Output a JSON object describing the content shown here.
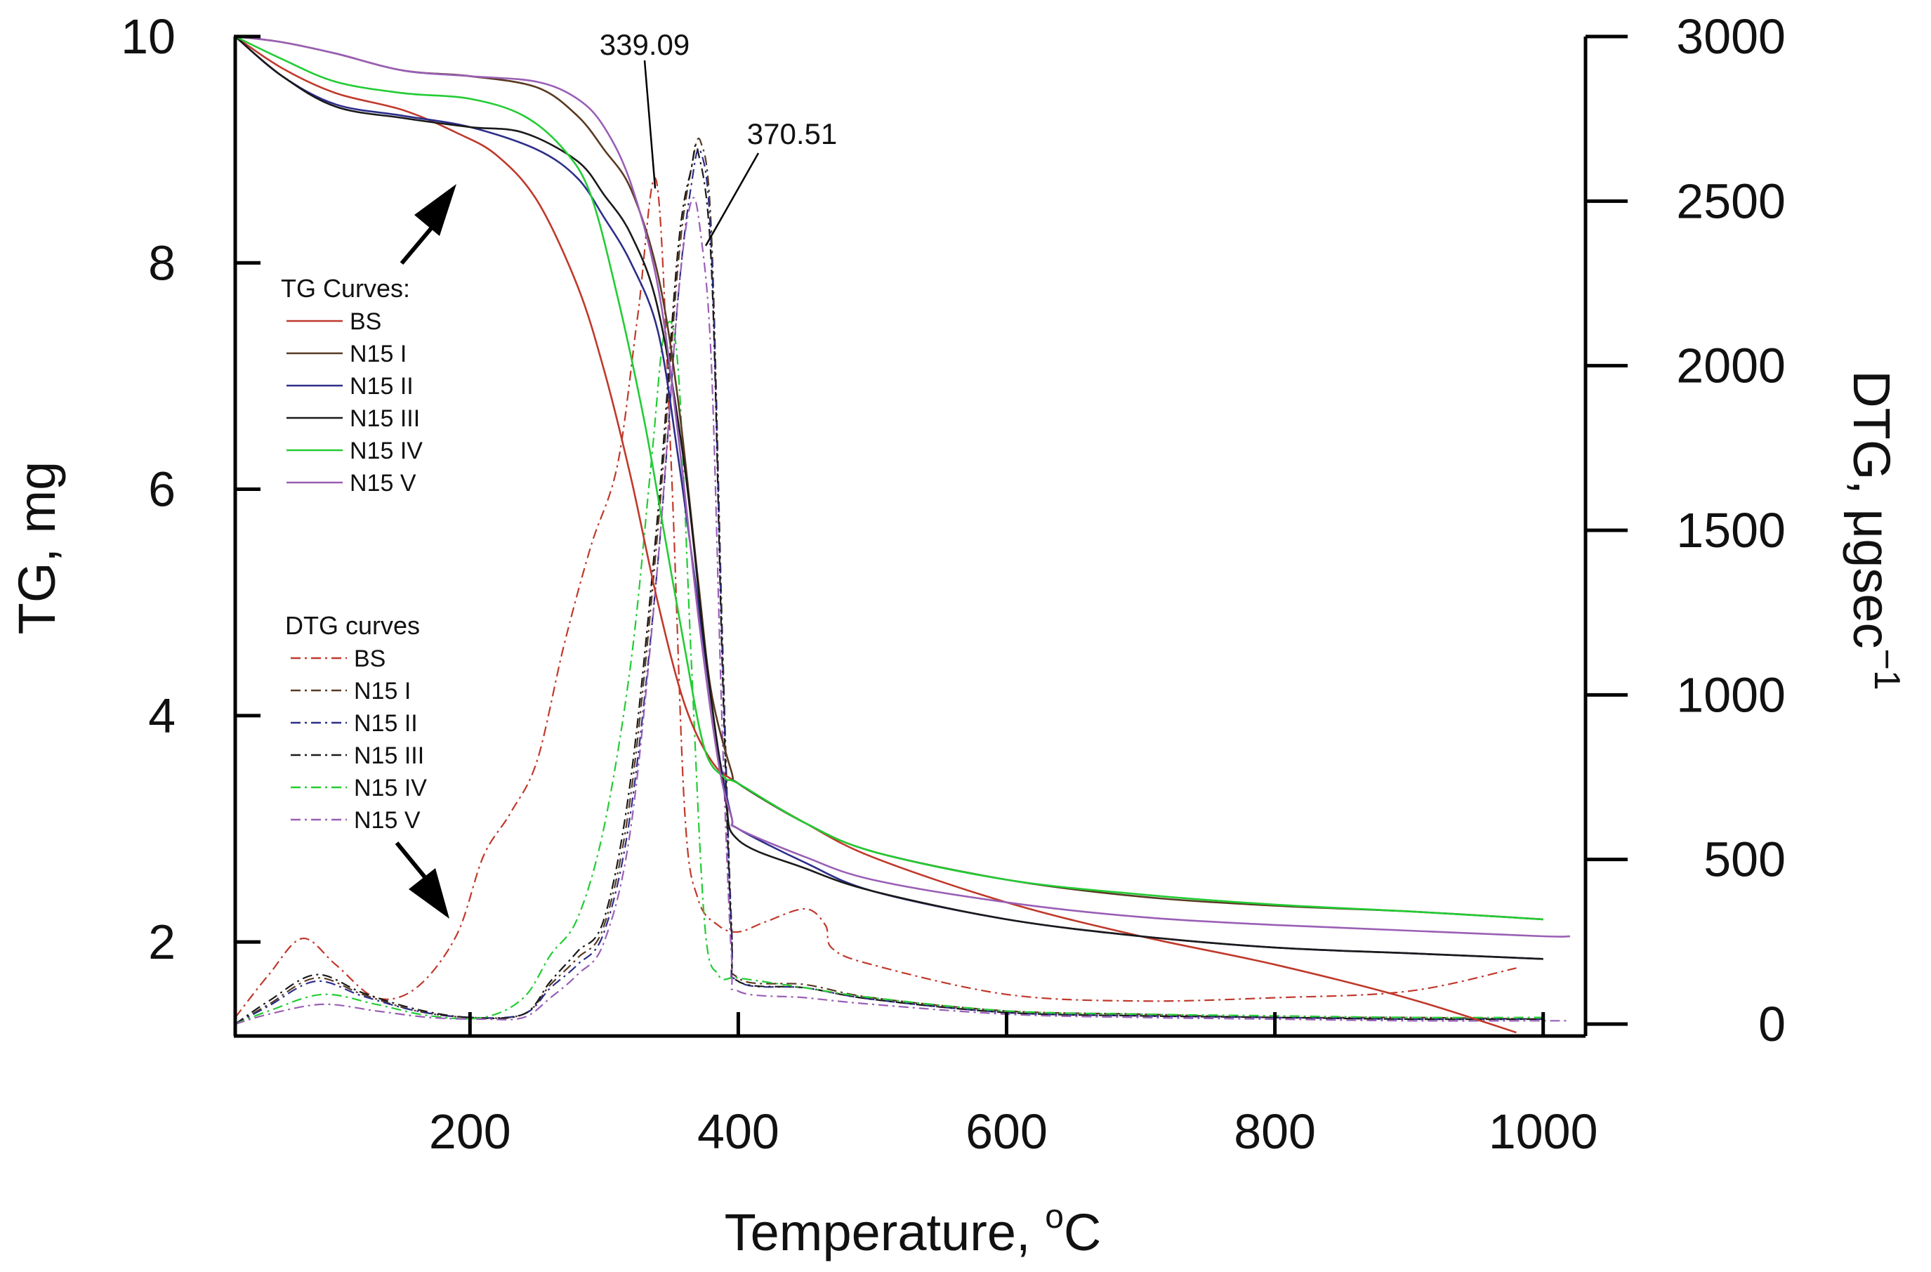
{
  "chart_data": {
    "type": "line",
    "title": "",
    "xlabel": "Temperature, ",
    "xlabel_unit": "C",
    "xlabel_degree": "o",
    "ylabel_left": "TG, mg",
    "ylabel_right": "DTG, μgsec",
    "ylabel_right_superscript": "−1",
    "xlim": [
      25,
      1030
    ],
    "ylim_left": [
      1.2,
      10
    ],
    "ylim_right": [
      0,
      3000
    ],
    "x_ticks": [
      200,
      400,
      600,
      800,
      1000
    ],
    "y_left_ticks": [
      2,
      4,
      6,
      8,
      10
    ],
    "y_right_ticks": [
      0,
      500,
      1000,
      1500,
      2000,
      2500,
      3000
    ],
    "legend_tg": {
      "title": "TG Curves:",
      "entries": [
        "BS",
        "N15 I",
        "N15 II",
        "N15 III",
        "N15 IV",
        "N15 V"
      ]
    },
    "legend_dtg": {
      "title": "DTG curves",
      "entries": [
        "BS",
        "N15 I",
        "N15 II",
        "N15 III",
        "N15 IV",
        "N15 V"
      ]
    },
    "annotations": [
      {
        "text": "339.09",
        "x": 339.09,
        "y_right": 2560
      },
      {
        "text": "370.51",
        "x": 370.51,
        "y_right": 2390
      }
    ],
    "colors": {
      "BS": "#c0392b",
      "N15 I": "#5a3a22",
      "N15 II": "#2c2e8a",
      "N15 III": "#1a1a1a",
      "N15 IV": "#22cc33",
      "N15 V": "#9a5fb5"
    },
    "tg_series": [
      {
        "name": "BS",
        "x": [
          25,
          60,
          100,
          150,
          190,
          220,
          250,
          280,
          300,
          320,
          340,
          360,
          380,
          400,
          450,
          500,
          600,
          700,
          800,
          900,
          980
        ],
        "y": [
          10,
          9.72,
          9.5,
          9.35,
          9.15,
          8.95,
          8.55,
          7.8,
          7.05,
          6.1,
          5,
          4.1,
          3.6,
          3.4,
          3.05,
          2.75,
          2.35,
          2.05,
          1.8,
          1.5,
          1.2
        ]
      },
      {
        "name": "N15 I",
        "x": [
          25,
          60,
          100,
          150,
          200,
          250,
          280,
          300,
          320,
          340,
          355,
          370,
          380,
          395,
          400,
          450,
          500,
          600,
          700,
          800,
          900,
          1000
        ],
        "y": [
          10,
          9.95,
          9.85,
          9.7,
          9.65,
          9.55,
          9.3,
          9.0,
          8.65,
          7.9,
          6.8,
          5.2,
          4.2,
          3.5,
          3.4,
          3.05,
          2.8,
          2.55,
          2.4,
          2.32,
          2.27,
          2.2
        ]
      },
      {
        "name": "N15 II",
        "x": [
          25,
          60,
          100,
          150,
          200,
          250,
          280,
          300,
          320,
          340,
          355,
          370,
          385,
          395,
          400,
          450,
          500,
          600,
          700,
          800,
          900,
          1000
        ],
        "y": [
          10,
          9.65,
          9.4,
          9.3,
          9.2,
          9.0,
          8.75,
          8.4,
          8.0,
          7.4,
          6.3,
          5.0,
          3.7,
          3.1,
          3.0,
          2.7,
          2.45,
          2.2,
          2.05,
          1.95,
          1.9,
          1.85
        ]
      },
      {
        "name": "N15 III",
        "x": [
          25,
          60,
          100,
          150,
          200,
          240,
          280,
          300,
          320,
          340,
          360,
          375,
          390,
          400,
          450,
          500,
          600,
          700,
          800,
          900,
          1000
        ],
        "y": [
          10,
          9.65,
          9.38,
          9.28,
          9.2,
          9.15,
          8.9,
          8.6,
          8.25,
          7.6,
          6.2,
          4.6,
          3.3,
          2.9,
          2.65,
          2.45,
          2.2,
          2.05,
          1.95,
          1.9,
          1.85
        ]
      },
      {
        "name": "N15 IV",
        "x": [
          25,
          60,
          100,
          150,
          200,
          240,
          270,
          290,
          310,
          330,
          345,
          360,
          375,
          390,
          400,
          450,
          500,
          600,
          700,
          800,
          900,
          1000
        ],
        "y": [
          10,
          9.8,
          9.6,
          9.5,
          9.45,
          9.3,
          9.0,
          8.6,
          7.7,
          6.6,
          5.6,
          4.6,
          3.7,
          3.45,
          3.4,
          3.05,
          2.8,
          2.55,
          2.42,
          2.33,
          2.27,
          2.2
        ]
      },
      {
        "name": "N15 V",
        "x": [
          25,
          60,
          100,
          150,
          200,
          250,
          280,
          300,
          320,
          340,
          355,
          370,
          385,
          395,
          400,
          450,
          500,
          600,
          700,
          800,
          900,
          1000,
          1020
        ],
        "y": [
          10,
          9.95,
          9.85,
          9.7,
          9.65,
          9.6,
          9.45,
          9.2,
          8.7,
          7.8,
          6.5,
          4.9,
          3.6,
          3.1,
          3.0,
          2.75,
          2.55,
          2.35,
          2.22,
          2.15,
          2.1,
          2.05,
          2.05
        ]
      }
    ],
    "dtg_series": [
      {
        "name": "BS",
        "x": [
          25,
          50,
          75,
          100,
          130,
          160,
          190,
          210,
          230,
          250,
          270,
          290,
          310,
          325,
          339,
          350,
          360,
          370,
          385,
          400,
          420,
          450,
          465,
          470,
          500,
          600,
          700,
          800,
          900,
          980
        ],
        "y": [
          20,
          150,
          260,
          180,
          80,
          110,
          270,
          510,
          640,
          800,
          1150,
          1450,
          1700,
          2150,
          2560,
          1700,
          650,
          380,
          300,
          280,
          310,
          350,
          300,
          230,
          180,
          90,
          70,
          80,
          100,
          170
        ]
      },
      {
        "name": "N15 I",
        "x": [
          25,
          50,
          85,
          120,
          160,
          200,
          240,
          260,
          280,
          300,
          320,
          340,
          355,
          365,
          372,
          380,
          388,
          395,
          400,
          450,
          500,
          600,
          700,
          800,
          900,
          1000
        ],
        "y": [
          0,
          60,
          140,
          90,
          40,
          20,
          30,
          120,
          200,
          300,
          700,
          1500,
          2300,
          2600,
          2680,
          2400,
          1200,
          300,
          140,
          120,
          80,
          40,
          30,
          20,
          20,
          15
        ]
      },
      {
        "name": "N15 II",
        "x": [
          25,
          50,
          85,
          120,
          160,
          200,
          240,
          260,
          280,
          300,
          320,
          340,
          355,
          365,
          372,
          380,
          388,
          395,
          400,
          450,
          500,
          600,
          700,
          800,
          900,
          1000
        ],
        "y": [
          0,
          55,
          130,
          85,
          40,
          20,
          30,
          110,
          180,
          280,
          650,
          1400,
          2200,
          2550,
          2650,
          2350,
          1150,
          280,
          130,
          110,
          75,
          35,
          25,
          20,
          15,
          15
        ]
      },
      {
        "name": "N15 III",
        "x": [
          25,
          50,
          85,
          120,
          160,
          200,
          240,
          260,
          280,
          300,
          320,
          340,
          355,
          365,
          370,
          380,
          388,
          395,
          400,
          450,
          500,
          600,
          700,
          800,
          900,
          1000
        ],
        "y": [
          0,
          70,
          150,
          95,
          45,
          20,
          30,
          130,
          220,
          320,
          750,
          1550,
          2350,
          2600,
          2650,
          2300,
          1100,
          260,
          130,
          110,
          75,
          35,
          25,
          20,
          15,
          15
        ]
      },
      {
        "name": "N15 IV",
        "x": [
          25,
          50,
          90,
          130,
          170,
          210,
          240,
          260,
          280,
          300,
          320,
          335,
          345,
          355,
          365,
          375,
          385,
          395,
          400,
          450,
          500,
          600,
          700,
          800,
          900,
          1000
        ],
        "y": [
          0,
          40,
          90,
          60,
          25,
          20,
          80,
          210,
          320,
          600,
          1100,
          1700,
          2100,
          2000,
          1100,
          300,
          150,
          140,
          140,
          110,
          80,
          40,
          30,
          25,
          20,
          20
        ]
      },
      {
        "name": "N15 V",
        "x": [
          25,
          50,
          90,
          130,
          170,
          210,
          240,
          260,
          280,
          300,
          320,
          340,
          355,
          365,
          372,
          380,
          388,
          395,
          400,
          450,
          500,
          600,
          700,
          800,
          900,
          1000,
          1020
        ],
        "y": [
          0,
          30,
          60,
          40,
          20,
          15,
          20,
          80,
          150,
          250,
          600,
          1400,
          2200,
          2500,
          2400,
          2000,
          900,
          200,
          100,
          80,
          60,
          30,
          20,
          15,
          10,
          10,
          10
        ]
      }
    ]
  }
}
